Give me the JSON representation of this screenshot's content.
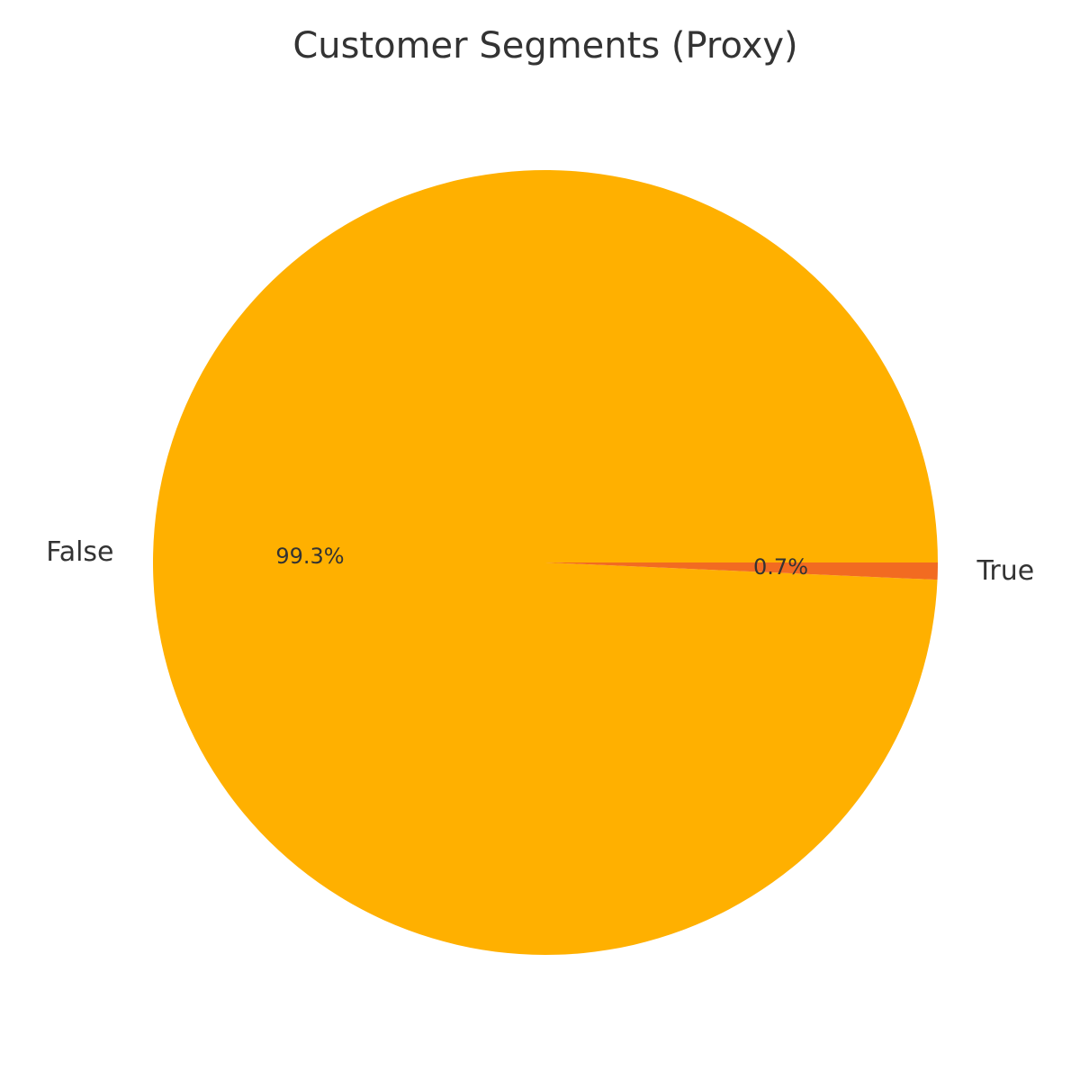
{
  "chart_data": {
    "type": "pie",
    "title": "Customer Segments (Proxy)",
    "categories": [
      "False",
      "True"
    ],
    "values": [
      99.3,
      0.7
    ],
    "value_labels": [
      "99.3%",
      "0.7%"
    ],
    "colors": [
      "#FFB000",
      "#F26B21"
    ],
    "start_angle_deg": 0,
    "direction": "counterclockwise",
    "legend": "none"
  }
}
